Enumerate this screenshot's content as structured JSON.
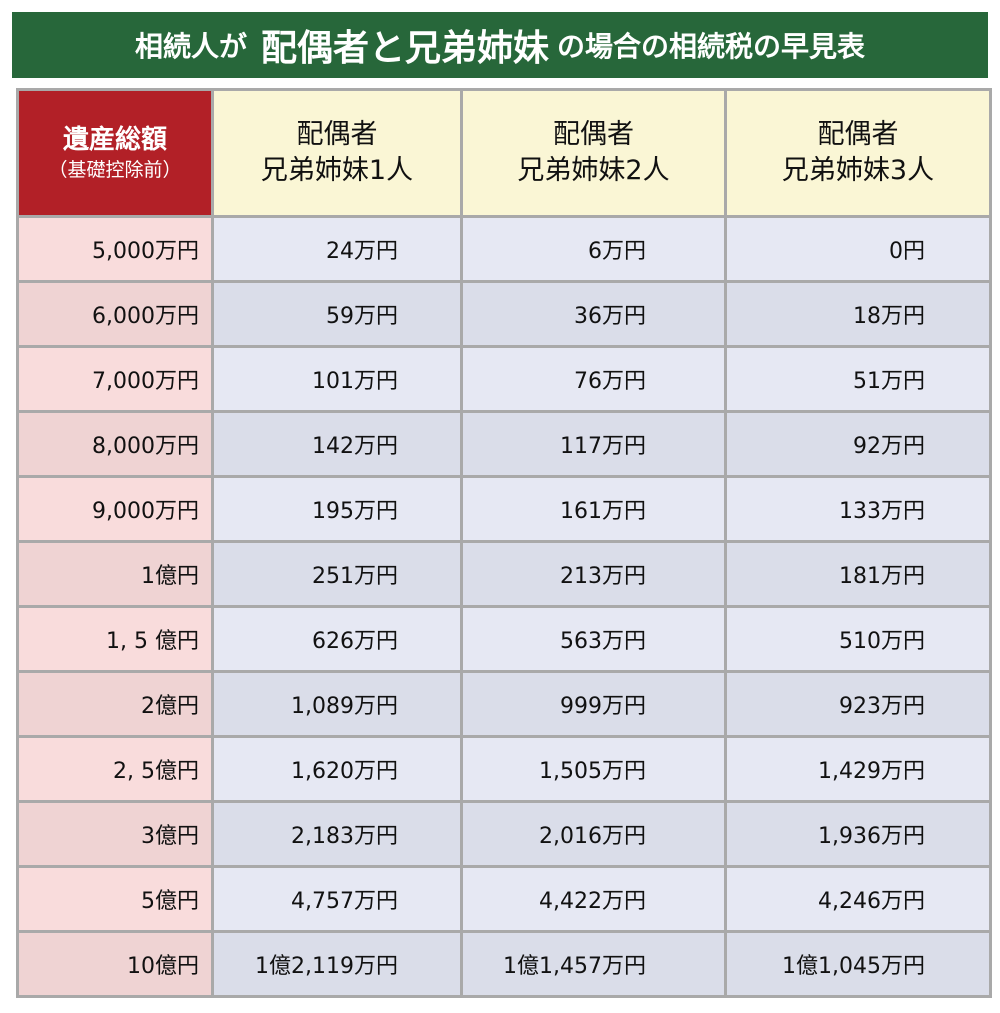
{
  "title": {
    "prefix": "相続人が",
    "emphasis": "配偶者と兄弟姉妹",
    "suffix": "の場合の相続税の早見表"
  },
  "table": {
    "headers": {
      "estate": {
        "main": "遺産総額",
        "sub": "（基礎控除前）"
      },
      "columns": [
        {
          "line1": "配偶者",
          "line2": "兄弟姉妹1人"
        },
        {
          "line1": "配偶者",
          "line2": "兄弟姉妹2人"
        },
        {
          "line1": "配偶者",
          "line2": "兄弟姉妹3人"
        }
      ]
    },
    "rows": [
      {
        "estate": "5,000万円",
        "values": [
          "24万円",
          "6万円",
          "0円"
        ]
      },
      {
        "estate": "6,000万円",
        "values": [
          "59万円",
          "36万円",
          "18万円"
        ]
      },
      {
        "estate": "7,000万円",
        "values": [
          "101万円",
          "76万円",
          "51万円"
        ]
      },
      {
        "estate": "8,000万円",
        "values": [
          "142万円",
          "117万円",
          "92万円"
        ]
      },
      {
        "estate": "9,000万円",
        "values": [
          "195万円",
          "161万円",
          "133万円"
        ]
      },
      {
        "estate": "1億円",
        "values": [
          "251万円",
          "213万円",
          "181万円"
        ]
      },
      {
        "estate": "1, 5 億円",
        "values": [
          "626万円",
          "563万円",
          "510万円"
        ]
      },
      {
        "estate": "2億円",
        "values": [
          "1,089万円",
          "999万円",
          "923万円"
        ]
      },
      {
        "estate": "2, 5億円",
        "values": [
          "1,620万円",
          "1,505万円",
          "1,429万円"
        ]
      },
      {
        "estate": "3億円",
        "values": [
          "2,183万円",
          "2,016万円",
          "1,936万円"
        ]
      },
      {
        "estate": "5億円",
        "values": [
          "4,757万円",
          "4,422万円",
          "4,246万円"
        ]
      },
      {
        "estate": "10億円",
        "values": [
          "1億2,119万円",
          "1億1,457万円",
          "1億1,045万円"
        ]
      }
    ]
  },
  "colors": {
    "title_bg": "#27673a",
    "estate_header_bg": "#b22027",
    "column_header_bg": "#faf6d5",
    "estate_cell_bg": "#f9dcdc",
    "value_cell_bg": "#e6e8f3",
    "grid_line": "#a9a9a9"
  }
}
